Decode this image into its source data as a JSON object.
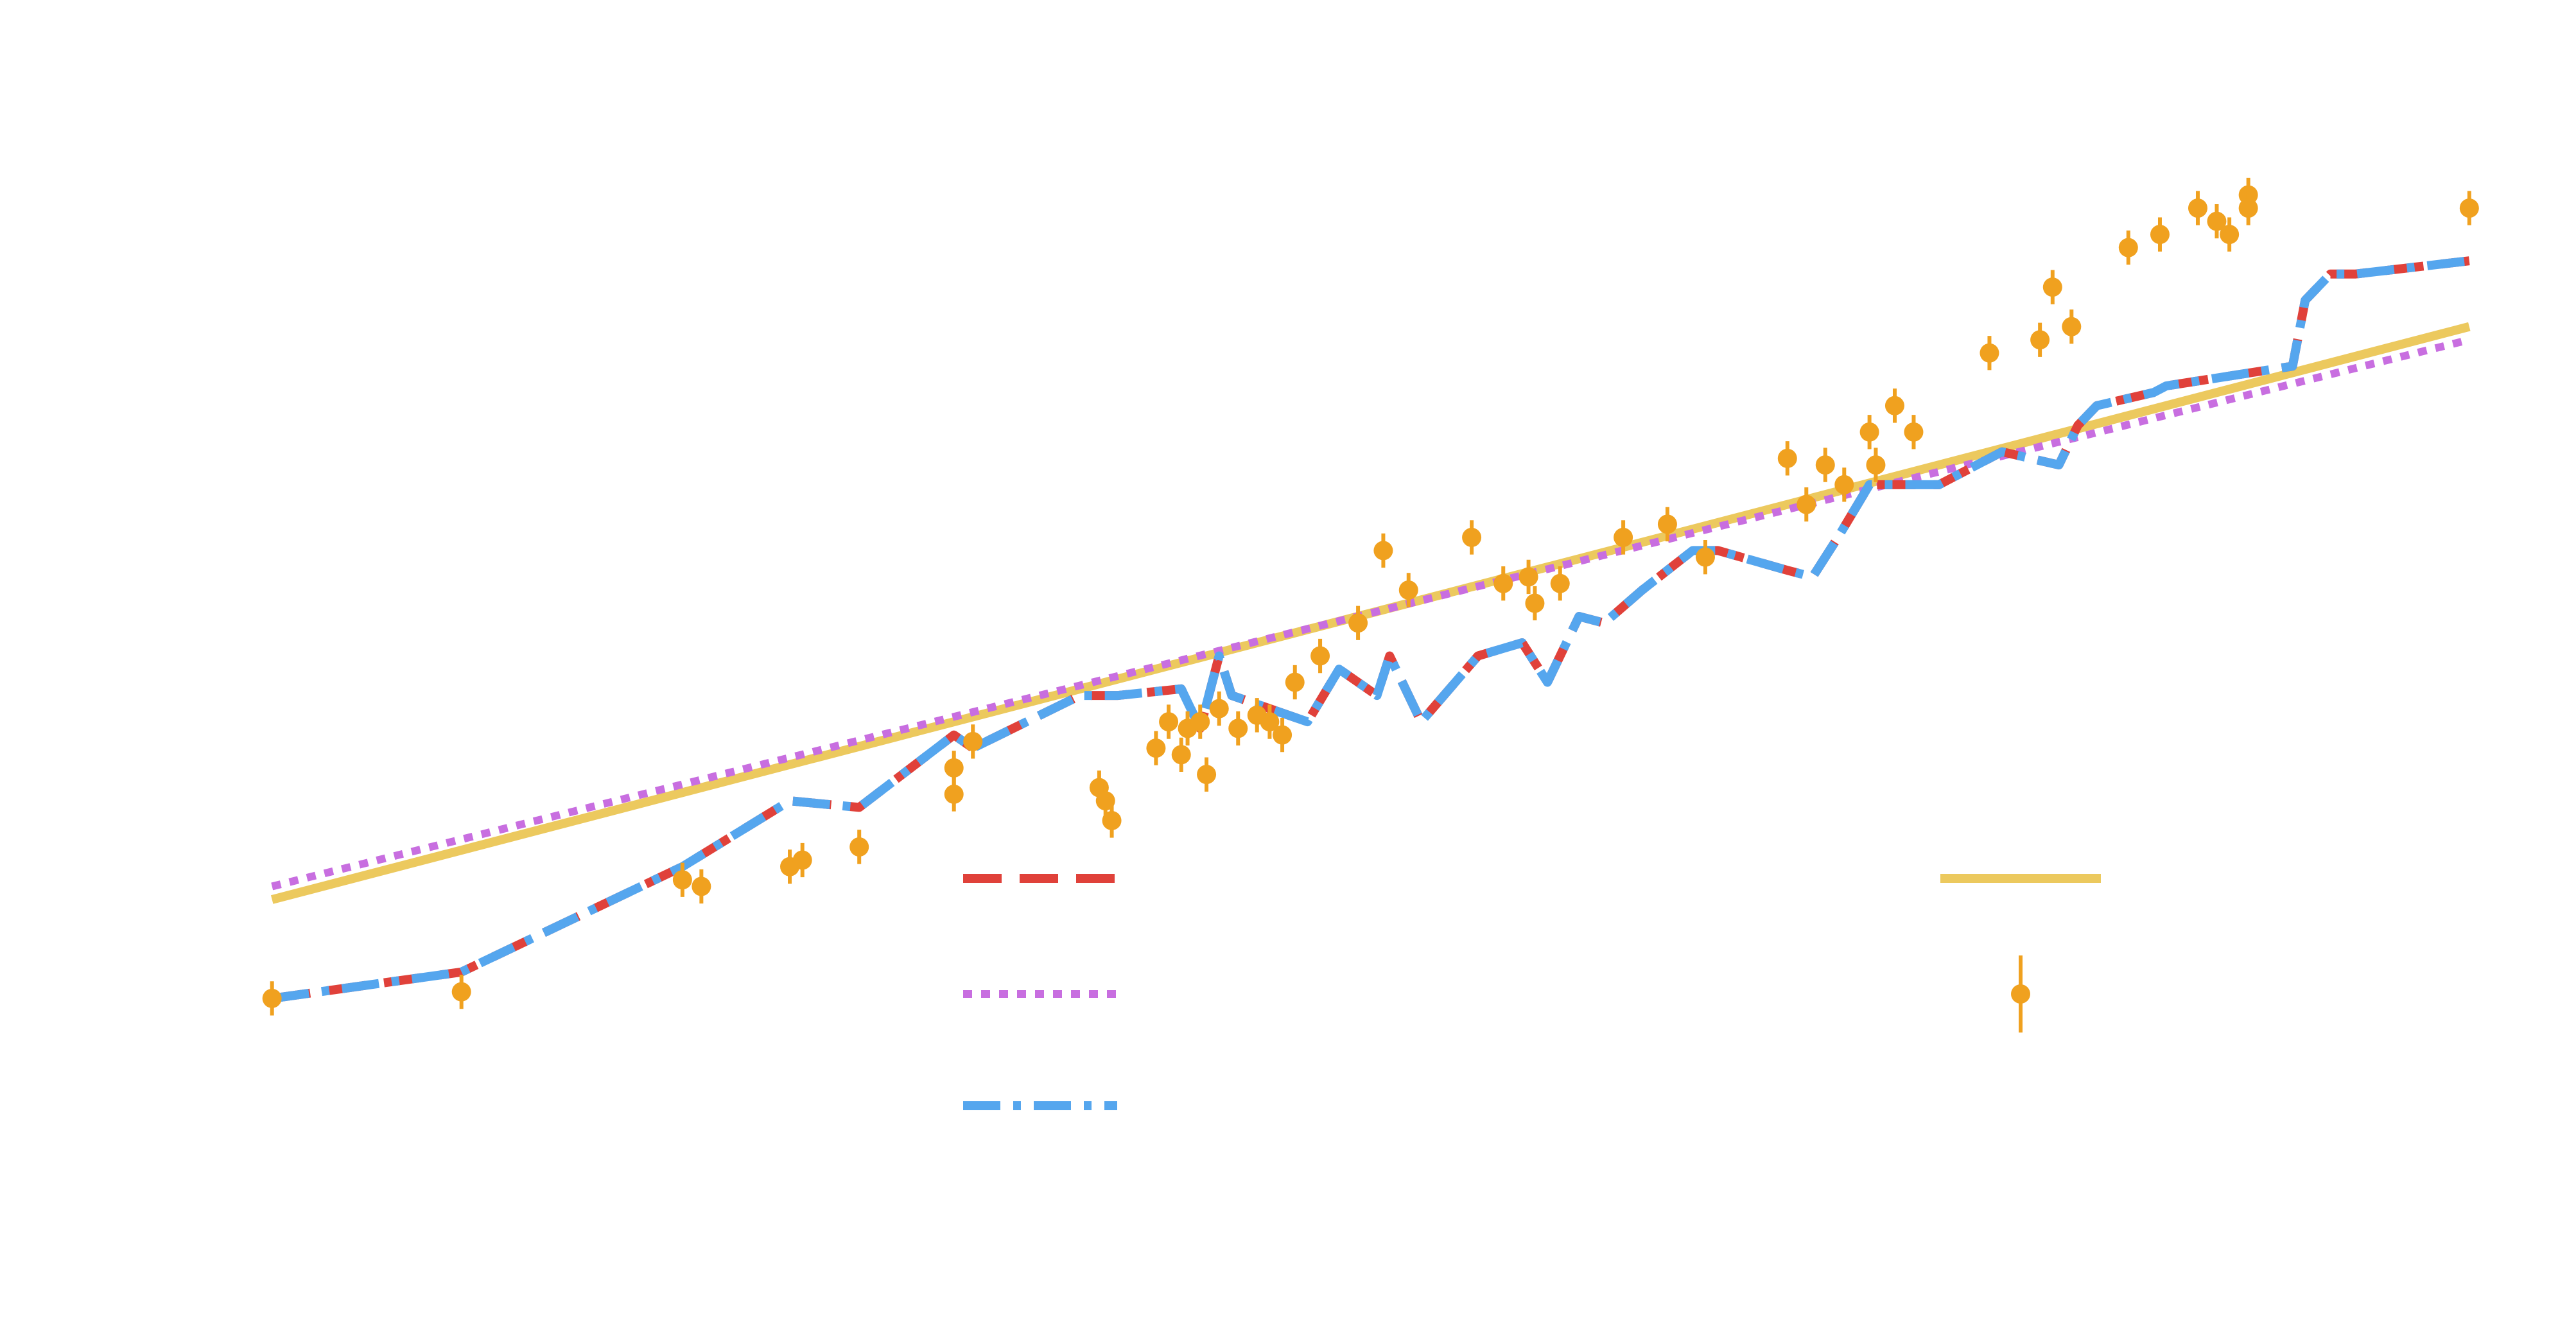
{
  "chart_data": {
    "type": "line",
    "grid": false,
    "legend_placement": "lower-center",
    "xlim": [
      -0.2,
      34.7
    ],
    "ylim": [
      -1.0,
      6.8
    ],
    "colors": {
      "dashed": "#e0413a",
      "dotted": "#c86ee0",
      "dashdot": "#55a6ee",
      "solid": "#ecc95e",
      "points": "#f0a11f"
    },
    "series": [
      {
        "key": "dashed",
        "style": "dashed",
        "color": "#e0413a",
        "x": [
          0.0,
          3.0,
          6.5,
          8.2,
          9.3,
          10.8,
          11.1,
          12.8,
          13.4,
          14.4,
          14.7,
          15.0,
          15.2,
          16.4,
          16.9,
          17.5,
          17.7,
          18.2,
          19.1,
          19.8,
          20.2,
          20.7,
          21.1,
          21.7,
          22.5,
          22.9,
          24.0,
          24.4,
          24.8,
          25.3,
          26.4,
          27.4,
          28.3,
          28.6,
          28.9,
          29.8,
          30.0,
          32.0,
          32.2,
          32.6,
          33.0,
          34.8
        ],
        "y": [
          0.0,
          0.2,
          1.0,
          1.5,
          1.45,
          2.0,
          1.9,
          2.3,
          2.3,
          2.35,
          2.05,
          2.6,
          2.3,
          2.1,
          2.5,
          2.3,
          2.6,
          2.1,
          2.6,
          2.7,
          2.4,
          2.9,
          2.85,
          3.1,
          3.4,
          3.4,
          3.25,
          3.2,
          3.5,
          3.9,
          3.9,
          4.15,
          4.05,
          4.35,
          4.5,
          4.6,
          4.65,
          4.8,
          5.3,
          5.5,
          5.5,
          5.6
        ]
      },
      {
        "key": "dotted",
        "style": "dotted",
        "color": "#c86ee0",
        "x": [
          0.0,
          34.8
        ],
        "y": [
          0.85,
          5.0
        ]
      },
      {
        "key": "dashdot",
        "style": "dashdot",
        "color": "#55a6ee",
        "x": [
          0.0,
          3.0,
          6.5,
          8.2,
          9.3,
          10.8,
          11.1,
          12.8,
          13.4,
          14.4,
          14.7,
          15.0,
          15.2,
          16.4,
          16.9,
          17.5,
          17.7,
          18.2,
          19.1,
          19.8,
          20.2,
          20.7,
          21.1,
          21.7,
          22.5,
          22.9,
          24.0,
          24.4,
          24.8,
          25.3,
          26.4,
          27.4,
          28.3,
          28.6,
          28.9,
          29.8,
          30.0,
          32.0,
          32.2,
          32.6,
          33.0,
          34.8
        ],
        "y": [
          0.0,
          0.2,
          1.0,
          1.5,
          1.45,
          2.0,
          1.9,
          2.3,
          2.3,
          2.35,
          2.05,
          2.6,
          2.3,
          2.1,
          2.5,
          2.3,
          2.6,
          2.1,
          2.6,
          2.7,
          2.4,
          2.9,
          2.85,
          3.1,
          3.4,
          3.4,
          3.25,
          3.2,
          3.5,
          3.9,
          3.9,
          4.15,
          4.05,
          4.35,
          4.5,
          4.6,
          4.65,
          4.8,
          5.3,
          5.5,
          5.5,
          5.6
        ]
      },
      {
        "key": "solid",
        "style": "solid",
        "color": "#ecc95e",
        "x": [
          0.0,
          34.8
        ],
        "y": [
          0.75,
          5.1
        ]
      }
    ],
    "points": {
      "key": "points",
      "color": "#f0a11f",
      "x": [
        0.0,
        3.0,
        6.5,
        6.8,
        8.2,
        8.4,
        9.3,
        10.8,
        10.8,
        11.1,
        13.1,
        13.2,
        13.3,
        14.0,
        14.2,
        14.4,
        14.5,
        14.7,
        14.8,
        15.0,
        15.3,
        15.6,
        15.8,
        16.0,
        16.2,
        16.6,
        17.2,
        17.6,
        18.0,
        19.0,
        19.5,
        19.9,
        20.0,
        20.4,
        21.4,
        22.1,
        22.7,
        24.0,
        24.3,
        24.6,
        24.9,
        25.3,
        25.4,
        25.7,
        26.0,
        27.2,
        28.0,
        28.2,
        28.5,
        29.4,
        29.9,
        30.5,
        30.8,
        31.0,
        31.3,
        31.3,
        34.8
      ],
      "y": [
        0.0,
        0.05,
        0.9,
        0.85,
        1.0,
        1.05,
        1.15,
        1.75,
        1.55,
        1.95,
        1.6,
        1.5,
        1.35,
        1.9,
        2.1,
        1.85,
        2.05,
        2.1,
        1.7,
        2.2,
        2.05,
        2.15,
        2.1,
        2.0,
        2.4,
        2.6,
        2.85,
        3.4,
        3.1,
        3.5,
        3.15,
        3.2,
        3.0,
        3.15,
        3.5,
        3.6,
        3.35,
        4.1,
        3.75,
        4.05,
        3.9,
        4.3,
        4.05,
        4.5,
        4.3,
        4.9,
        5.0,
        5.4,
        5.1,
        5.7,
        5.8,
        6.0,
        5.9,
        5.8,
        6.1,
        6.0,
        6.0
      ],
      "err": 0.13
    },
    "legend": {
      "entries": [
        {
          "series": "dashed",
          "style": "dashed",
          "color": "#e0413a"
        },
        {
          "series": "dotted",
          "style": "dotted",
          "color": "#c86ee0"
        },
        {
          "series": "dashdot",
          "style": "dashdot",
          "color": "#55a6ee"
        },
        {
          "series": "solid",
          "style": "solid",
          "color": "#ecc95e"
        },
        {
          "series": "points",
          "style": "errorbar",
          "color": "#f0a11f"
        }
      ]
    }
  }
}
